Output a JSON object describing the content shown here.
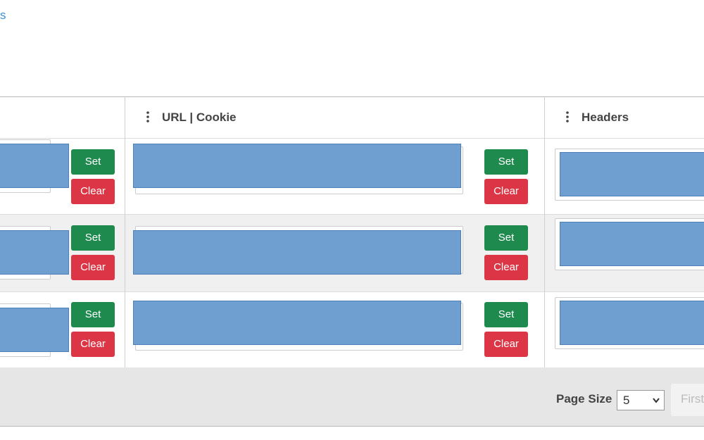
{
  "link": "s",
  "table": {
    "columns": [
      "URL | Cookie",
      "Headers"
    ],
    "rows": [
      {
        "cells": [
          {
            "set": "Set",
            "clear": "Clear"
          },
          {
            "set": "Set",
            "clear": "Clear"
          }
        ]
      },
      {
        "cells": [
          {
            "set": "Set",
            "clear": "Clear"
          },
          {
            "set": "Set",
            "clear": "Clear"
          }
        ]
      },
      {
        "cells": [
          {
            "set": "Set",
            "clear": "Clear"
          },
          {
            "set": "Set",
            "clear": "Clear"
          }
        ]
      }
    ]
  },
  "footer": {
    "page_size_label": "Page Size",
    "page_size": "5",
    "first": "First"
  }
}
